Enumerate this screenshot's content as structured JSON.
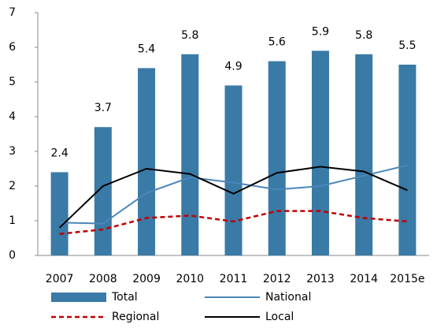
{
  "chart_data": {
    "type": "bar_line",
    "categories": [
      "2007",
      "2008",
      "2009",
      "2010",
      "2011",
      "2012",
      "2013",
      "2014",
      "2015e"
    ],
    "series": [
      {
        "name": "Total",
        "type": "bar",
        "color": "#3a7aa6",
        "values": [
          2.4,
          3.7,
          5.4,
          5.8,
          4.9,
          5.6,
          5.9,
          5.8,
          5.5
        ]
      },
      {
        "name": "National",
        "type": "line",
        "color": "#4a86b8",
        "dash": false,
        "values": [
          0.95,
          0.92,
          1.8,
          2.25,
          2.1,
          1.9,
          2.0,
          2.3,
          2.6
        ]
      },
      {
        "name": "Regional",
        "type": "line",
        "color": "#c00000",
        "dash": true,
        "values": [
          0.62,
          0.75,
          1.08,
          1.15,
          0.98,
          1.28,
          1.28,
          1.08,
          0.98
        ]
      },
      {
        "name": "Local",
        "type": "line",
        "color": "#000000",
        "dash": false,
        "values": [
          0.8,
          2.0,
          2.5,
          2.35,
          1.78,
          2.38,
          2.56,
          2.42,
          1.88
        ]
      }
    ],
    "ylim": [
      0,
      7
    ],
    "yticks": [
      0,
      1,
      2,
      3,
      4,
      5,
      6,
      7
    ]
  }
}
